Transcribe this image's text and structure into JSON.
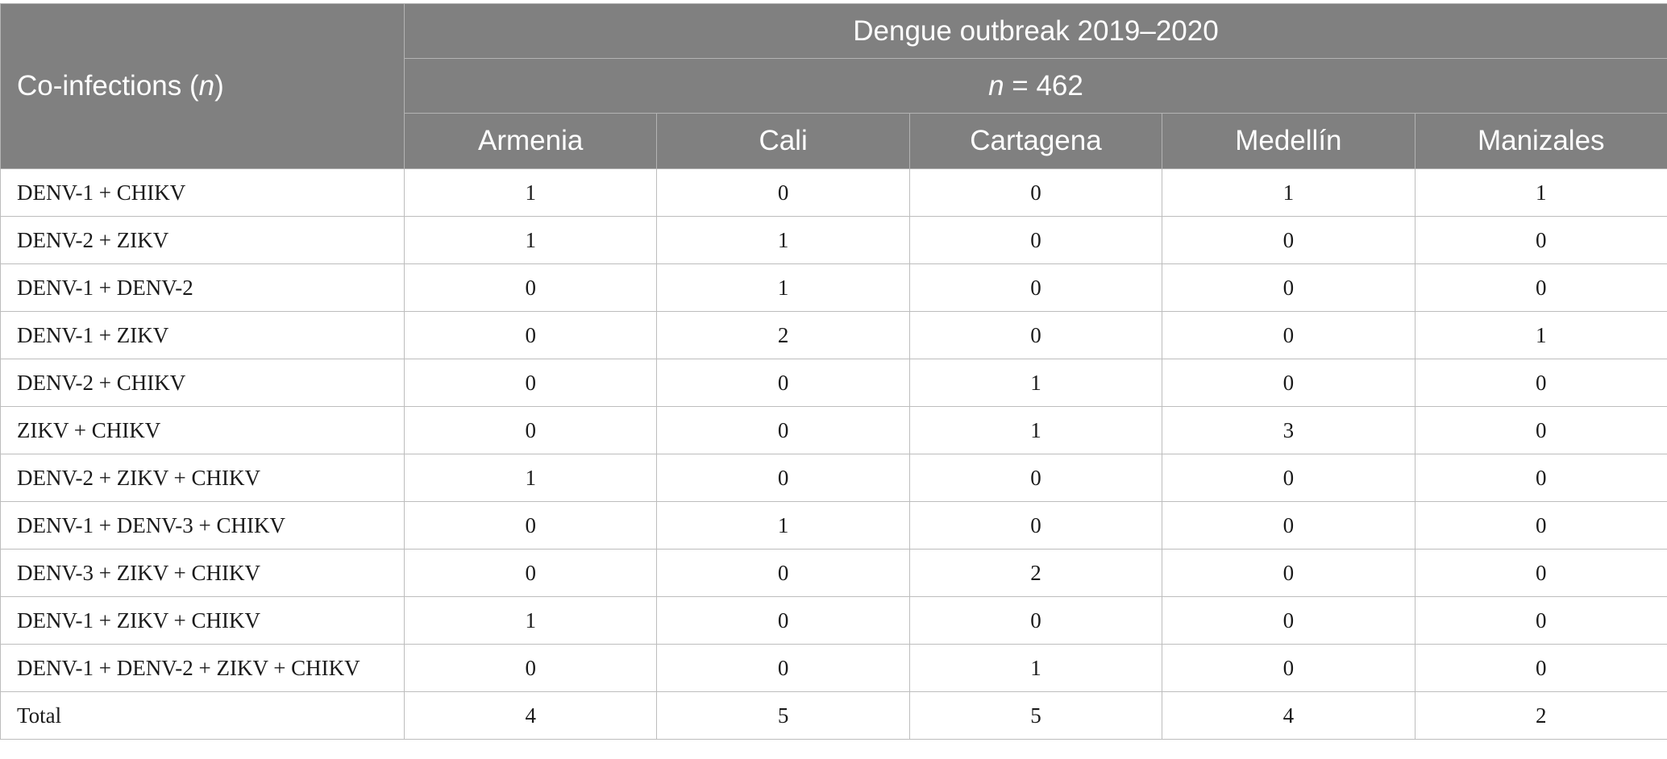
{
  "table": {
    "stub_header_prefix": "Co-infections (",
    "stub_header_n": "n",
    "stub_header_suffix": ")",
    "span_title": "Dengue outbreak 2019–2020",
    "span_n_italic": "n",
    "span_n_rest": " = 462",
    "columns": [
      "Armenia",
      "Cali",
      "Cartagena",
      "Medellín",
      "Manizales"
    ],
    "rows": [
      {
        "label": "DENV-1 + CHIKV",
        "values": [
          "1",
          "0",
          "0",
          "1",
          "1"
        ]
      },
      {
        "label": "DENV-2 + ZIKV",
        "values": [
          "1",
          "1",
          "0",
          "0",
          "0"
        ]
      },
      {
        "label": "DENV-1 + DENV-2",
        "values": [
          "0",
          "1",
          "0",
          "0",
          "0"
        ]
      },
      {
        "label": "DENV-1 + ZIKV",
        "values": [
          "0",
          "2",
          "0",
          "0",
          "1"
        ]
      },
      {
        "label": "DENV-2 + CHIKV",
        "values": [
          "0",
          "0",
          "1",
          "0",
          "0"
        ]
      },
      {
        "label": "ZIKV + CHIKV",
        "values": [
          "0",
          "0",
          "1",
          "3",
          "0"
        ]
      },
      {
        "label": "DENV-2 + ZIKV + CHIKV",
        "values": [
          "1",
          "0",
          "0",
          "0",
          "0"
        ]
      },
      {
        "label": "DENV-1 + DENV-3 + CHIKV",
        "values": [
          "0",
          "1",
          "0",
          "0",
          "0"
        ]
      },
      {
        "label": "DENV-3 + ZIKV + CHIKV",
        "values": [
          "0",
          "0",
          "2",
          "0",
          "0"
        ]
      },
      {
        "label": "DENV-1 + ZIKV + CHIKV",
        "values": [
          "1",
          "0",
          "0",
          "0",
          "0"
        ]
      },
      {
        "label": "DENV-1 + DENV-2 + ZIKV + CHIKV",
        "values": [
          "0",
          "0",
          "1",
          "0",
          "0"
        ]
      },
      {
        "label": "Total",
        "values": [
          "4",
          "5",
          "5",
          "4",
          "2"
        ]
      }
    ]
  },
  "colors": {
    "header_bg": "#808080",
    "header_text": "#ffffff",
    "grid_line": "#bdbdbd"
  }
}
